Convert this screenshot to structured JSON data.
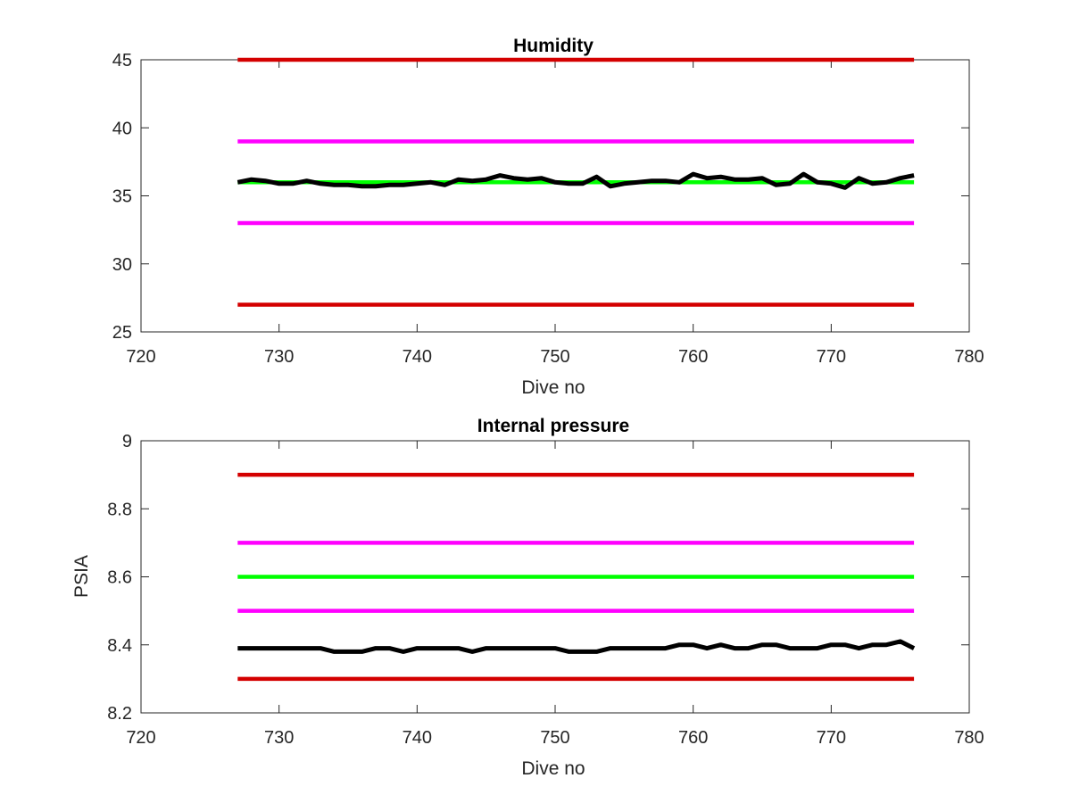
{
  "chart_data": [
    {
      "type": "line",
      "title": "Humidity",
      "xlabel": "Dive no",
      "ylabel": "",
      "xlim": [
        720,
        780
      ],
      "ylim": [
        25,
        45
      ],
      "xticks": [
        720,
        730,
        740,
        750,
        760,
        770,
        780
      ],
      "yticks": [
        25,
        30,
        35,
        40,
        45
      ],
      "grid": false,
      "series": [
        {
          "color": "#d40000",
          "x": [
            727,
            776
          ],
          "y": [
            45,
            45
          ]
        },
        {
          "color": "#ff00ff",
          "x": [
            727,
            776
          ],
          "y": [
            39,
            39
          ]
        },
        {
          "color": "#00ff00",
          "x": [
            727,
            776
          ],
          "y": [
            36,
            36
          ]
        },
        {
          "color": "#ff00ff",
          "x": [
            727,
            776
          ],
          "y": [
            33,
            33
          ]
        },
        {
          "color": "#d40000",
          "x": [
            727,
            776
          ],
          "y": [
            27,
            27
          ]
        },
        {
          "color": "#000000",
          "x": [
            727,
            728,
            729,
            730,
            731,
            732,
            733,
            734,
            735,
            736,
            737,
            738,
            739,
            740,
            741,
            742,
            743,
            744,
            745,
            746,
            747,
            748,
            749,
            750,
            751,
            752,
            753,
            754,
            755,
            756,
            757,
            758,
            759,
            760,
            761,
            762,
            763,
            764,
            765,
            766,
            767,
            768,
            769,
            770,
            771,
            772,
            773,
            774,
            775,
            776
          ],
          "y": [
            36.0,
            36.2,
            36.1,
            35.9,
            35.9,
            36.1,
            35.9,
            35.8,
            35.8,
            35.7,
            35.7,
            35.8,
            35.8,
            35.9,
            36.0,
            35.8,
            36.2,
            36.1,
            36.2,
            36.5,
            36.3,
            36.2,
            36.3,
            36.0,
            35.9,
            35.9,
            36.4,
            35.7,
            35.9,
            36.0,
            36.1,
            36.1,
            36.0,
            36.6,
            36.3,
            36.4,
            36.2,
            36.2,
            36.3,
            35.8,
            35.9,
            36.6,
            36.0,
            35.9,
            35.6,
            36.3,
            35.9,
            36.0,
            36.3,
            36.5
          ]
        }
      ]
    },
    {
      "type": "line",
      "title": "Internal pressure",
      "xlabel": "Dive no",
      "ylabel": "PSIA",
      "xlim": [
        720,
        780
      ],
      "ylim": [
        8.2,
        9
      ],
      "xticks": [
        720,
        730,
        740,
        750,
        760,
        770,
        780
      ],
      "yticks": [
        8.2,
        8.4,
        8.6,
        8.8,
        9
      ],
      "grid": false,
      "series": [
        {
          "color": "#d40000",
          "x": [
            727,
            776
          ],
          "y": [
            8.9,
            8.9
          ]
        },
        {
          "color": "#ff00ff",
          "x": [
            727,
            776
          ],
          "y": [
            8.7,
            8.7
          ]
        },
        {
          "color": "#00ff00",
          "x": [
            727,
            776
          ],
          "y": [
            8.6,
            8.6
          ]
        },
        {
          "color": "#ff00ff",
          "x": [
            727,
            776
          ],
          "y": [
            8.5,
            8.5
          ]
        },
        {
          "color": "#d40000",
          "x": [
            727,
            776
          ],
          "y": [
            8.3,
            8.3
          ]
        },
        {
          "color": "#000000",
          "x": [
            727,
            728,
            729,
            730,
            731,
            732,
            733,
            734,
            735,
            736,
            737,
            738,
            739,
            740,
            741,
            742,
            743,
            744,
            745,
            746,
            747,
            748,
            749,
            750,
            751,
            752,
            753,
            754,
            755,
            756,
            757,
            758,
            759,
            760,
            761,
            762,
            763,
            764,
            765,
            766,
            767,
            768,
            769,
            770,
            771,
            772,
            773,
            774,
            775,
            776
          ],
          "y": [
            8.39,
            8.39,
            8.39,
            8.39,
            8.39,
            8.39,
            8.39,
            8.38,
            8.38,
            8.38,
            8.39,
            8.39,
            8.38,
            8.39,
            8.39,
            8.39,
            8.39,
            8.38,
            8.39,
            8.39,
            8.39,
            8.39,
            8.39,
            8.39,
            8.38,
            8.38,
            8.38,
            8.39,
            8.39,
            8.39,
            8.39,
            8.39,
            8.4,
            8.4,
            8.39,
            8.4,
            8.39,
            8.39,
            8.4,
            8.4,
            8.39,
            8.39,
            8.39,
            8.4,
            8.4,
            8.39,
            8.4,
            8.4,
            8.41,
            8.39
          ]
        }
      ]
    }
  ]
}
